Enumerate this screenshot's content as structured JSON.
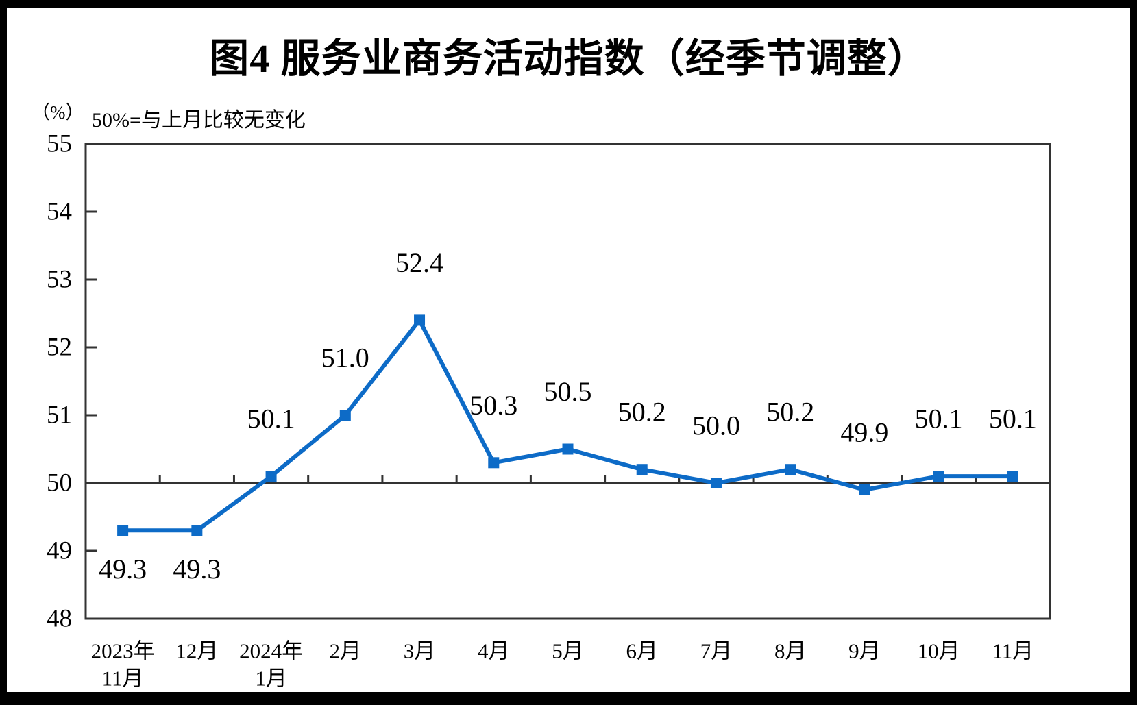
{
  "chart_data": {
    "type": "line",
    "title": "图4 服务业商务活动指数（经季节调整）",
    "unit_label": "（%）",
    "note": "50%=与上月比较无变化",
    "categories": [
      {
        "line1": "2023年",
        "line2": "11月"
      },
      {
        "line1": "12月",
        "line2": ""
      },
      {
        "line1": "2024年",
        "line2": "1月"
      },
      {
        "line1": "2月",
        "line2": ""
      },
      {
        "line1": "3月",
        "line2": ""
      },
      {
        "line1": "4月",
        "line2": ""
      },
      {
        "line1": "5月",
        "line2": ""
      },
      {
        "line1": "6月",
        "line2": ""
      },
      {
        "line1": "7月",
        "line2": ""
      },
      {
        "line1": "8月",
        "line2": ""
      },
      {
        "line1": "9月",
        "line2": ""
      },
      {
        "line1": "10月",
        "line2": ""
      },
      {
        "line1": "11月",
        "line2": ""
      }
    ],
    "values": [
      49.3,
      49.3,
      50.1,
      51.0,
      52.4,
      50.3,
      50.5,
      50.2,
      50.0,
      50.2,
      49.9,
      50.1,
      50.1
    ],
    "data_labels": [
      "49.3",
      "49.3",
      "50.1",
      "51.0",
      "52.4",
      "50.3",
      "50.5",
      "50.2",
      "50.0",
      "50.2",
      "49.9",
      "50.1",
      "50.1"
    ],
    "label_positions": [
      "below",
      "below",
      "above",
      "above",
      "above",
      "above",
      "above",
      "above",
      "above",
      "above",
      "above",
      "above",
      "above"
    ],
    "ylim": [
      48,
      55
    ],
    "yticks": [
      55,
      54,
      53,
      52,
      51,
      50,
      49,
      48
    ],
    "reference_line_y": 50,
    "grid": "off",
    "legend": "none",
    "colors": {
      "line": "#0D6BC7",
      "marker": "#0D6BC7",
      "axis": "#333333",
      "text": "#000000",
      "background": "#FFFFFF",
      "frame": "#000000"
    }
  }
}
